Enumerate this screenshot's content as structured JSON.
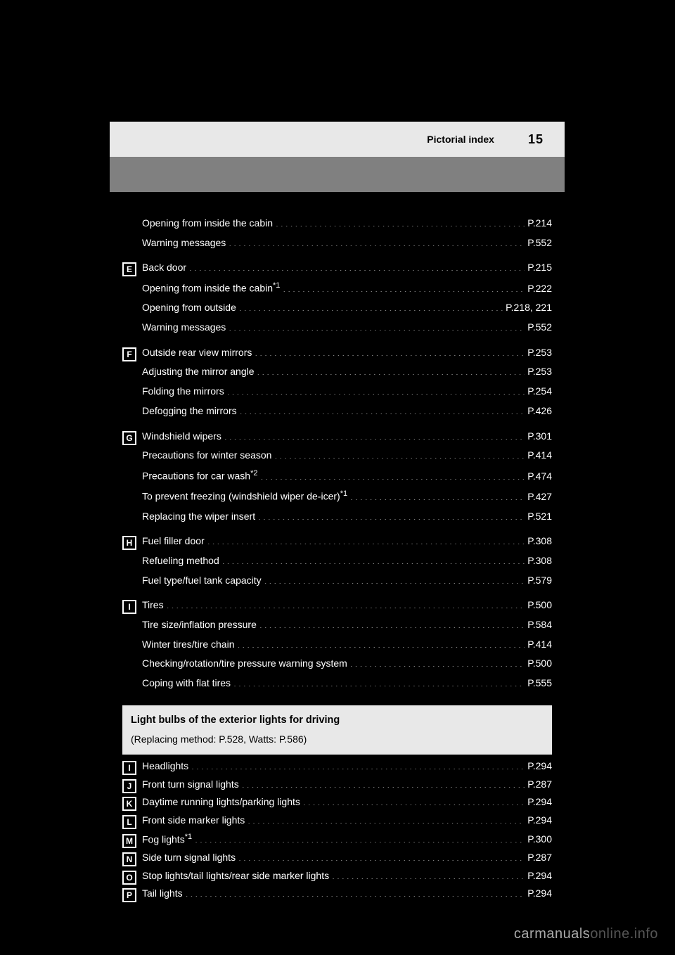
{
  "header": {
    "title": "Pictorial index",
    "page_number": "15"
  },
  "entries": [
    {
      "letter": null,
      "rows": [
        {
          "label": "Opening from inside the cabin",
          "page": "P.214"
        },
        {
          "label": "Warning messages",
          "page": "P.552"
        }
      ]
    },
    {
      "letter": "E",
      "rows": [
        {
          "label": "Back door",
          "page": "P.215"
        },
        {
          "label": "Opening from inside the cabin<span class=\"sup\">*1</span>",
          "page": "P.222"
        },
        {
          "label": "Opening from outside",
          "page": "P.218, 221"
        },
        {
          "label": "Warning messages",
          "page": "P.552"
        }
      ]
    },
    {
      "letter": "F",
      "rows": [
        {
          "label": "Outside rear view mirrors",
          "page": "P.253"
        },
        {
          "label": "Adjusting the mirror angle",
          "page": "P.253"
        },
        {
          "label": "Folding the mirrors",
          "page": "P.254"
        },
        {
          "label": "Defogging the mirrors",
          "page": "P.426"
        }
      ]
    },
    {
      "letter": "G",
      "rows": [
        {
          "label": "Windshield wipers",
          "page": "P.301"
        },
        {
          "label": "Precautions for winter season",
          "page": "P.414"
        },
        {
          "label": "Precautions for car wash<span class=\"sup\">*2</span>",
          "page": "P.474"
        },
        {
          "label": "To prevent freezing (windshield wiper de-icer)<span class=\"sup\">*1</span>",
          "page": "P.427"
        },
        {
          "label": "Replacing the wiper insert",
          "page": "P.521"
        }
      ]
    },
    {
      "letter": "H",
      "rows": [
        {
          "label": "Fuel filler door",
          "page": "P.308"
        },
        {
          "label": "Refueling method",
          "page": "P.308"
        },
        {
          "label": "Fuel type/fuel tank capacity",
          "page": "P.579"
        }
      ]
    },
    {
      "letter": "I",
      "rows": [
        {
          "label": "Tires",
          "page": "P.500"
        },
        {
          "label": "Tire size/inflation pressure",
          "page": "P.584"
        },
        {
          "label": "Winter tires/tire chain",
          "page": "P.414"
        },
        {
          "label": "Checking/rotation/tire pressure warning system",
          "page": "P.500"
        },
        {
          "label": "Coping with flat tires",
          "page": "P.555"
        }
      ]
    }
  ],
  "infobox": {
    "title": "Light bulbs of the exterior lights for driving",
    "sub": "(Replacing method: P.528, Watts: P.586)"
  },
  "lights": [
    {
      "letter": "I",
      "label": "Headlights",
      "page": "P.294"
    },
    {
      "letter": "J",
      "label": "Front turn signal lights",
      "page": "P.287"
    },
    {
      "letter": "K",
      "label": "Daytime running lights/parking lights",
      "page": "P.294"
    },
    {
      "letter": "L",
      "label": "Front side marker lights",
      "page": "P.294"
    },
    {
      "letter": "M",
      "label": "Fog lights<span class=\"sup\">*1</span>",
      "page": "P.300"
    },
    {
      "letter": "N",
      "label": "Side turn signal lights",
      "page": "P.287"
    },
    {
      "letter": "O",
      "label": "Stop lights/tail lights/rear side marker lights",
      "page": "P.294"
    },
    {
      "letter": "P",
      "label": "Tail lights",
      "page": "P.294"
    }
  ],
  "watermark": {
    "a": "carmanuals",
    "b": "online.info"
  }
}
